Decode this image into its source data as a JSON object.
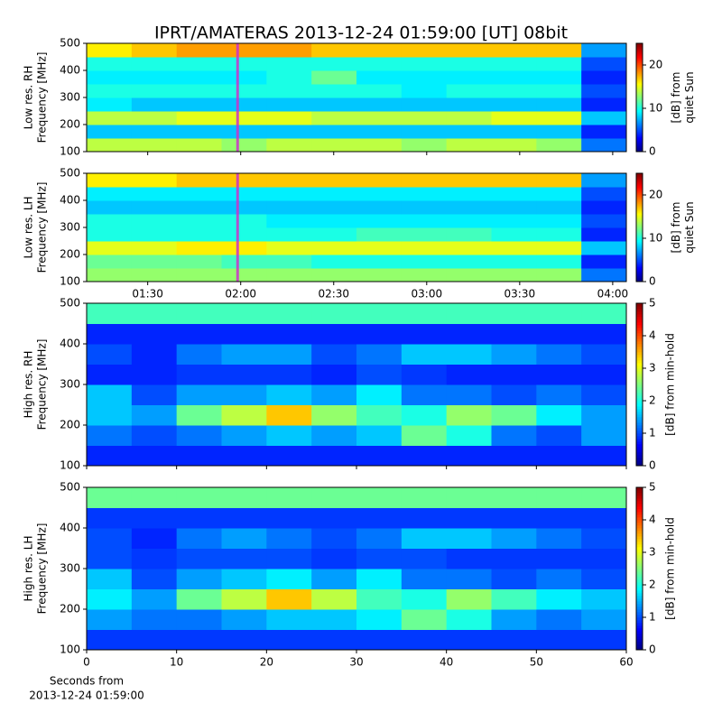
{
  "chart_data": [
    {
      "type": "heatmap",
      "title": "IPRT/AMATERAS 2013-12-24 01:59:00 [UT]   08bit",
      "ylabel": [
        "Low res. RH",
        "Frequency [MHz]"
      ],
      "xlim": [
        70.3,
        244.4
      ],
      "ylim": [
        100,
        500
      ],
      "yticks": [
        100,
        200,
        300,
        400,
        500
      ],
      "zlim": [
        0,
        25
      ],
      "zticks": [
        0,
        10,
        20
      ],
      "colormap": "jet",
      "clabel": [
        "[dB] from",
        "quiet Sun"
      ],
      "marker_x": 119,
      "marker_color": "#cc33cc",
      "z": [
        [
          14,
          14,
          14,
          13,
          14,
          14,
          14,
          13,
          14,
          14,
          13,
          6
        ],
        [
          8,
          8,
          8,
          8,
          8,
          8,
          8,
          8,
          8,
          8,
          8,
          4
        ],
        [
          14,
          14,
          15,
          15,
          15,
          14,
          14,
          14,
          14,
          15,
          15,
          8
        ],
        [
          9,
          8,
          8,
          8,
          8,
          8,
          8,
          8,
          8,
          8,
          8,
          4
        ],
        [
          10,
          10,
          10,
          10,
          10,
          10,
          10,
          9,
          10,
          10,
          10,
          5
        ],
        [
          9,
          9,
          9,
          9,
          10,
          12,
          9,
          9,
          9,
          9,
          9,
          4
        ],
        [
          10,
          10,
          10,
          10,
          10,
          10,
          10,
          10,
          10,
          10,
          10,
          5
        ],
        [
          16,
          17,
          18,
          18,
          18,
          17,
          17,
          17,
          17,
          17,
          17,
          7
        ]
      ]
    },
    {
      "type": "heatmap",
      "ylabel": [
        "Low res. LH",
        "Frequency [MHz]"
      ],
      "xlim": [
        70.3,
        244.4
      ],
      "ylim": [
        100,
        500
      ],
      "yticks": [
        100,
        200,
        300,
        400,
        500
      ],
      "xticks": [
        {
          "value": 90,
          "label": "01:30"
        },
        {
          "value": 120,
          "label": "02:00"
        },
        {
          "value": 150,
          "label": "02:30"
        },
        {
          "value": 180,
          "label": "03:00"
        },
        {
          "value": 210,
          "label": "03:30"
        },
        {
          "value": 240,
          "label": "04:00"
        }
      ],
      "zlim": [
        0,
        25
      ],
      "zticks": [
        0,
        10,
        20
      ],
      "colormap": "jet",
      "clabel": [
        "[dB] from",
        "quiet Sun"
      ],
      "marker_x": 119,
      "marker_color": "#cc33cc",
      "z": [
        [
          13,
          13,
          13,
          13,
          13,
          13,
          13,
          13,
          13,
          13,
          13,
          6
        ],
        [
          12,
          12,
          12,
          11,
          11,
          10,
          10,
          10,
          10,
          10,
          10,
          4
        ],
        [
          15,
          15,
          16,
          16,
          15,
          15,
          15,
          15,
          15,
          15,
          15,
          8
        ],
        [
          10,
          10,
          10,
          10,
          10,
          10,
          11,
          11,
          11,
          10,
          10,
          4
        ],
        [
          10,
          10,
          10,
          10,
          9,
          9,
          9,
          9,
          9,
          9,
          9,
          5
        ],
        [
          8,
          8,
          8,
          8,
          8,
          8,
          8,
          8,
          8,
          8,
          8,
          4
        ],
        [
          9,
          9,
          9,
          9,
          9,
          9,
          9,
          9,
          9,
          9,
          9,
          5
        ],
        [
          16,
          16,
          17,
          17,
          17,
          17,
          17,
          17,
          17,
          17,
          17,
          7
        ]
      ]
    },
    {
      "type": "heatmap",
      "ylabel": [
        "High res. RH",
        "Frequency [MHz]"
      ],
      "xlim": [
        0,
        60
      ],
      "ylim": [
        100,
        500
      ],
      "yticks": [
        100,
        200,
        300,
        400,
        500
      ],
      "zlim": [
        0,
        5
      ],
      "zticks": [
        0,
        1,
        2,
        3,
        4,
        5
      ],
      "colormap": "jet",
      "clabel": [
        "[dB] from min-hold"
      ],
      "z": [
        [
          0.8,
          0.8,
          0.8,
          0.8,
          0.8,
          0.8,
          0.8,
          0.8,
          0.8,
          0.8,
          0.8,
          0.8
        ],
        [
          1.2,
          1.0,
          1.2,
          1.4,
          1.6,
          1.4,
          1.6,
          2.4,
          2.0,
          1.2,
          1.0,
          1.4
        ],
        [
          1.6,
          1.4,
          2.4,
          2.8,
          3.4,
          2.6,
          2.2,
          2.0,
          2.6,
          2.4,
          1.8,
          1.4
        ],
        [
          1.6,
          1.0,
          1.4,
          1.4,
          1.6,
          1.4,
          1.8,
          1.2,
          1.2,
          1.0,
          1.2,
          1.0
        ],
        [
          0.8,
          0.8,
          0.9,
          0.9,
          0.9,
          0.8,
          1.0,
          0.9,
          0.8,
          0.8,
          0.8,
          0.8
        ],
        [
          1.0,
          0.8,
          1.2,
          1.4,
          1.4,
          1.0,
          1.2,
          1.6,
          1.6,
          1.4,
          1.2,
          1.0
        ],
        [
          0.8,
          0.8,
          0.8,
          0.8,
          0.8,
          0.8,
          0.8,
          0.8,
          0.8,
          0.8,
          0.8,
          0.8
        ],
        [
          2.2,
          2.2,
          2.2,
          2.2,
          2.2,
          2.2,
          2.2,
          2.2,
          2.2,
          2.2,
          2.2,
          2.2
        ]
      ]
    },
    {
      "type": "heatmap",
      "ylabel": [
        "High res. LH",
        "Frequency [MHz]"
      ],
      "xlim": [
        0,
        60
      ],
      "ylim": [
        100,
        500
      ],
      "yticks": [
        100,
        200,
        300,
        400,
        500
      ],
      "xticks": [
        0,
        10,
        20,
        30,
        40,
        50,
        60
      ],
      "xlabel": [
        "Seconds from",
        "2013-12-24 01:59:00"
      ],
      "zlim": [
        0,
        5
      ],
      "zticks": [
        0,
        1,
        2,
        3,
        4,
        5
      ],
      "colormap": "jet",
      "clabel": [
        "[dB] from min-hold"
      ],
      "z": [
        [
          0.9,
          0.9,
          0.9,
          0.9,
          0.9,
          0.9,
          0.9,
          0.9,
          0.9,
          0.9,
          0.9,
          0.9
        ],
        [
          1.4,
          1.2,
          1.2,
          1.4,
          1.6,
          1.6,
          1.8,
          2.4,
          2.0,
          1.4,
          1.2,
          1.4
        ],
        [
          1.8,
          1.4,
          2.4,
          2.8,
          3.4,
          2.8,
          2.2,
          2.0,
          2.6,
          2.2,
          1.8,
          1.6
        ],
        [
          1.6,
          1.0,
          1.4,
          1.6,
          1.8,
          1.4,
          1.8,
          1.2,
          1.2,
          1.0,
          1.2,
          1.0
        ],
        [
          1.0,
          0.9,
          1.0,
          1.0,
          1.0,
          0.9,
          1.0,
          1.0,
          0.9,
          0.9,
          0.9,
          0.9
        ],
        [
          1.0,
          0.8,
          1.2,
          1.4,
          1.2,
          1.0,
          1.2,
          1.6,
          1.6,
          1.4,
          1.2,
          1.0
        ],
        [
          0.9,
          0.9,
          0.9,
          0.9,
          0.9,
          0.9,
          0.9,
          0.9,
          0.9,
          0.9,
          0.9,
          0.9
        ],
        [
          2.4,
          2.4,
          2.4,
          2.4,
          2.4,
          2.4,
          2.4,
          2.4,
          2.4,
          2.4,
          2.4,
          2.4
        ]
      ]
    }
  ]
}
